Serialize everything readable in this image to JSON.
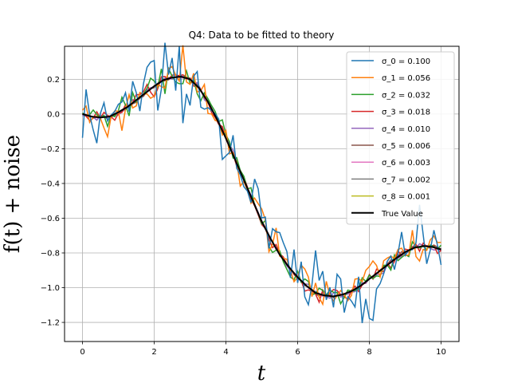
{
  "chart_data": {
    "type": "line",
    "title": "Q4: Data to be fitted to theory",
    "xlabel": "t",
    "ylabel": "f(t) + noise",
    "xlim": [
      -0.5,
      10.5
    ],
    "ylim": [
      -1.31,
      0.39
    ],
    "x_ticks": [
      "0",
      "2",
      "4",
      "6",
      "8",
      "10"
    ],
    "y_ticks": [
      "0.2",
      "0.0",
      "−0.2",
      "−0.4",
      "−0.6",
      "−0.8",
      "−1.0",
      "−1.2"
    ],
    "grid": true,
    "legend_position": "top-right",
    "true_curve": {
      "x": [
        0,
        0.25,
        0.5,
        0.75,
        1.0,
        1.25,
        1.5,
        1.75,
        2.0,
        2.25,
        2.5,
        2.75,
        3.0,
        3.25,
        3.5,
        3.75,
        4.0,
        4.25,
        4.5,
        4.75,
        5.0,
        5.25,
        5.5,
        5.75,
        6.0,
        6.25,
        6.5,
        6.75,
        7.0,
        7.25,
        7.5,
        7.75,
        8.0,
        8.25,
        8.5,
        8.75,
        9.0,
        9.25,
        9.5,
        9.75,
        10.0
      ],
      "y": [
        0.0,
        -0.015,
        -0.02,
        -0.015,
        0.01,
        0.04,
        0.08,
        0.12,
        0.16,
        0.195,
        0.21,
        0.215,
        0.2,
        0.15,
        0.07,
        -0.03,
        -0.14,
        -0.26,
        -0.38,
        -0.5,
        -0.62,
        -0.72,
        -0.81,
        -0.88,
        -0.94,
        -0.99,
        -1.03,
        -1.045,
        -1.05,
        -1.04,
        -1.02,
        -0.99,
        -0.95,
        -0.91,
        -0.87,
        -0.83,
        -0.795,
        -0.77,
        -0.76,
        -0.765,
        -0.78
      ]
    },
    "series": [
      {
        "name": "σ_0 = 0.100",
        "color": "#1f77b4",
        "sigma": 0.1
      },
      {
        "name": "σ_1 = 0.056",
        "color": "#ff7f0e",
        "sigma": 0.056
      },
      {
        "name": "σ_2 = 0.032",
        "color": "#2ca02c",
        "sigma": 0.032
      },
      {
        "name": "σ_3 = 0.018",
        "color": "#d62728",
        "sigma": 0.018
      },
      {
        "name": "σ_4 = 0.010",
        "color": "#9467bd",
        "sigma": 0.01
      },
      {
        "name": "σ_5 = 0.006",
        "color": "#8c564b",
        "sigma": 0.006
      },
      {
        "name": "σ_6 = 0.003",
        "color": "#e377c2",
        "sigma": 0.003
      },
      {
        "name": "σ_7 = 0.002",
        "color": "#7f7f7f",
        "sigma": 0.002
      },
      {
        "name": "σ_8 = 0.001",
        "color": "#bcbd22",
        "sigma": 0.001
      },
      {
        "name": "True Value",
        "color": "#000000",
        "sigma": 0
      }
    ]
  }
}
